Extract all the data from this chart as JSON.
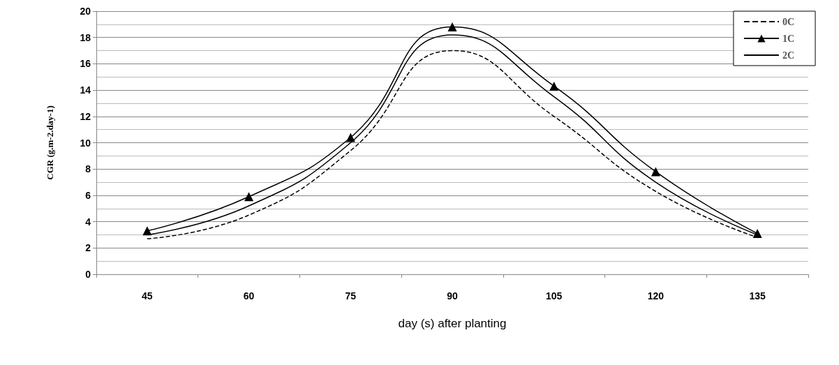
{
  "chart_data": {
    "type": "line",
    "xlabel": "day (s) after planting",
    "ylabel": "CGR (g.m-2.day-1)",
    "categories": [
      "45",
      "60",
      "75",
      "90",
      "105",
      "120",
      "135"
    ],
    "series": [
      {
        "name": "0C",
        "color": "#000000",
        "line_style": "dashed",
        "marker": "none",
        "values": [
          2.7,
          4.5,
          9.4,
          17,
          12,
          6.3,
          2.8
        ]
      },
      {
        "name": "1C",
        "color": "#000000",
        "line_style": "solid",
        "marker": "triangle",
        "values": [
          3.3,
          5.9,
          10.4,
          18.8,
          14.3,
          7.8,
          3.1
        ]
      },
      {
        "name": "2C",
        "color": "#000000",
        "line_style": "solid",
        "marker": "none",
        "values": [
          3.0,
          5.2,
          10.0,
          18.2,
          13.5,
          7.0,
          3.0
        ]
      }
    ],
    "ylim": [
      0,
      20
    ],
    "yticks": [
      0,
      2,
      4,
      6,
      8,
      10,
      12,
      14,
      16,
      18,
      20
    ],
    "grid": "y",
    "legend": "top right"
  }
}
